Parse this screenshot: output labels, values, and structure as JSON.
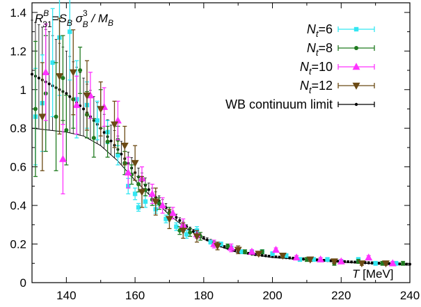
{
  "chart_data": {
    "type": "scatter",
    "title_parts": {
      "r": "R",
      "r_sup": "B",
      "r_sub": "31",
      "eq": "=S",
      "s_sub": "B",
      "sigma": "σ",
      "sigma_sup": "3",
      "sigma_sub": "B",
      "div": " / M",
      "m_sub": "B"
    },
    "xlabel_parts": {
      "t": "T",
      "unit": " [MeV]"
    },
    "xlim": [
      130,
      240
    ],
    "ylim": [
      0,
      1.45
    ],
    "xticks": [
      140,
      160,
      180,
      200,
      220,
      240
    ],
    "yticks": [
      0,
      0.2,
      0.4,
      0.6,
      0.8,
      1,
      1.2,
      1.4
    ],
    "grid": false,
    "legend_position": "top-right",
    "legend": [
      {
        "n": "N",
        "sub": "t",
        "rest": "=6",
        "color": "#33e6f2",
        "marker": "square"
      },
      {
        "n": "N",
        "sub": "t",
        "rest": "=8",
        "color": "#1f7a1f",
        "marker": "circle"
      },
      {
        "n": "N",
        "sub": "t",
        "rest": "=10",
        "color": "#ff33ff",
        "marker": "triangle-up"
      },
      {
        "n": "N",
        "sub": "t",
        "rest": "=12",
        "color": "#6b4a14",
        "marker": "triangle-down"
      },
      {
        "n": "WB continuum limit",
        "sub": "",
        "rest": "",
        "color": "#000000",
        "marker": "dot"
      }
    ],
    "series": [
      {
        "name": "Nt=6",
        "color": "#33e6f2",
        "marker": "square",
        "points": [
          [
            131,
            0.86,
            0.25
          ],
          [
            133,
            0.93,
            0.25
          ],
          [
            136,
            1.14,
            0.28
          ],
          [
            138,
            1.27,
            0.3
          ],
          [
            141,
            1.3,
            0.25
          ],
          [
            143,
            0.95,
            0.2
          ],
          [
            146,
            0.92,
            0.12
          ],
          [
            149,
            0.84,
            0.1
          ],
          [
            152,
            0.78,
            0.06
          ],
          [
            155,
            0.66,
            0.05
          ],
          [
            158,
            0.5,
            0.04
          ],
          [
            160,
            0.46,
            0.03
          ],
          [
            161,
            0.39,
            0.02
          ],
          [
            163,
            0.42,
            0.03
          ],
          [
            166,
            0.38,
            0.02
          ],
          [
            169,
            0.33,
            0.02
          ],
          [
            172,
            0.29,
            0.02
          ],
          [
            175,
            0.25,
            0.02
          ],
          [
            178,
            0.27,
            0.02
          ],
          [
            182,
            0.21,
            0.01
          ],
          [
            185,
            0.2,
            0.01
          ],
          [
            188,
            0.18,
            0.01
          ],
          [
            191,
            0.16,
            0.01
          ],
          [
            194,
            0.16,
            0.01
          ],
          [
            197,
            0.16,
            0.01
          ],
          [
            200,
            0.15,
            0.01
          ],
          [
            204,
            0.14,
            0.01
          ],
          [
            208,
            0.12,
            0.01
          ],
          [
            212,
            0.12,
            0.01
          ],
          [
            216,
            0.12,
            0.01
          ],
          [
            220,
            0.11,
            0.01
          ],
          [
            225,
            0.12,
            0.01
          ],
          [
            230,
            0.1,
            0.01
          ],
          [
            236,
            0.1,
            0.01
          ]
        ]
      },
      {
        "name": "Nt=8",
        "color": "#1f7a1f",
        "marker": "circle",
        "points": [
          [
            131,
            0.9,
            0.35
          ],
          [
            134,
            0.98,
            0.3
          ],
          [
            137,
            0.86,
            0.28
          ],
          [
            139,
            1.06,
            0.22
          ],
          [
            140,
            0.79,
            0.18
          ],
          [
            142,
            0.95,
            0.15
          ],
          [
            144,
            1.1,
            0.12
          ],
          [
            146,
            0.87,
            0.12
          ],
          [
            148,
            0.75,
            0.1
          ],
          [
            150,
            0.9,
            0.1
          ],
          [
            152,
            0.73,
            0.08
          ],
          [
            155,
            0.74,
            0.07
          ],
          [
            157,
            0.62,
            0.06
          ],
          [
            159,
            0.56,
            0.05
          ],
          [
            161,
            0.51,
            0.04
          ],
          [
            163,
            0.48,
            0.03
          ],
          [
            165,
            0.43,
            0.03
          ],
          [
            167,
            0.41,
            0.03
          ],
          [
            170,
            0.36,
            0.03
          ],
          [
            173,
            0.27,
            0.02
          ],
          [
            176,
            0.26,
            0.02
          ],
          [
            179,
            0.24,
            0.02
          ],
          [
            183,
            0.2,
            0.01
          ],
          [
            187,
            0.19,
            0.01
          ],
          [
            192,
            0.16,
            0.01
          ],
          [
            197,
            0.16,
            0.01
          ],
          [
            203,
            0.14,
            0.01
          ],
          [
            210,
            0.12,
            0.01
          ],
          [
            218,
            0.1,
            0.01
          ],
          [
            225,
            0.11,
            0.01
          ],
          [
            232,
            0.1,
            0.01
          ],
          [
            238,
            0.1,
            0.01
          ]
        ]
      },
      {
        "name": "Nt=10",
        "color": "#ff33ff",
        "marker": "triangle-up",
        "points": [
          [
            134,
            1.09,
            0.25
          ],
          [
            139,
            0.64,
            0.18
          ],
          [
            143,
            0.92,
            0.15
          ],
          [
            147,
            0.97,
            0.12
          ],
          [
            151,
            0.91,
            0.1
          ],
          [
            155,
            0.84,
            0.1
          ],
          [
            158,
            0.57,
            0.08
          ],
          [
            162,
            0.54,
            0.06
          ],
          [
            165,
            0.46,
            0.05
          ],
          [
            168,
            0.4,
            0.04
          ],
          [
            171,
            0.36,
            0.03
          ],
          [
            174,
            0.3,
            0.03
          ],
          [
            178,
            0.25,
            0.02
          ],
          [
            183,
            0.2,
            0.02
          ],
          [
            188,
            0.18,
            0.02
          ],
          [
            194,
            0.16,
            0.01
          ],
          [
            201,
            0.17,
            0.01
          ],
          [
            207,
            0.13,
            0.01
          ],
          [
            214,
            0.12,
            0.01
          ],
          [
            220,
            0.11,
            0.01
          ],
          [
            228,
            0.13,
            0.01
          ],
          [
            235,
            0.1,
            0.01
          ]
        ]
      },
      {
        "name": "Nt=12",
        "color": "#6b4a14",
        "marker": "triangle-down",
        "points": [
          [
            133,
            0.86,
            0.28
          ],
          [
            138,
            1.07,
            0.3
          ],
          [
            142,
            1.09,
            0.22
          ],
          [
            146,
            0.97,
            0.18
          ],
          [
            150,
            0.9,
            0.14
          ],
          [
            154,
            0.82,
            0.12
          ],
          [
            157,
            0.71,
            0.1
          ],
          [
            160,
            0.62,
            0.09
          ],
          [
            162,
            0.47,
            0.08
          ],
          [
            166,
            0.42,
            0.07
          ],
          [
            170,
            0.33,
            0.05
          ],
          [
            174,
            0.27,
            0.04
          ],
          [
            178,
            0.24,
            0.03
          ],
          [
            184,
            0.19,
            0.02
          ],
          [
            190,
            0.17,
            0.02
          ],
          [
            196,
            0.15,
            0.01
          ],
          [
            203,
            0.14,
            0.01
          ],
          [
            211,
            0.12,
            0.01
          ],
          [
            218,
            0.11,
            0.01
          ],
          [
            226,
            0.1,
            0.01
          ],
          [
            233,
            0.1,
            0.01
          ]
        ]
      }
    ],
    "continuum": {
      "name": "WB continuum limit",
      "x_start": 130,
      "x_end": 240,
      "x_step": 1,
      "center_at": [
        [
          130,
          1.08
        ],
        [
          135,
          1.03
        ],
        [
          140,
          0.98
        ],
        [
          145,
          0.9
        ],
        [
          150,
          0.8
        ],
        [
          155,
          0.69
        ],
        [
          160,
          0.57
        ],
        [
          165,
          0.46
        ],
        [
          170,
          0.37
        ],
        [
          175,
          0.29
        ],
        [
          180,
          0.23
        ],
        [
          185,
          0.19
        ],
        [
          190,
          0.16
        ],
        [
          195,
          0.145
        ],
        [
          200,
          0.135
        ],
        [
          210,
          0.12
        ],
        [
          220,
          0.11
        ],
        [
          230,
          0.1
        ],
        [
          240,
          0.095
        ]
      ],
      "lower_at": [
        [
          130,
          0.8
        ],
        [
          140,
          0.78
        ],
        [
          145,
          0.76
        ],
        [
          150,
          0.71
        ],
        [
          155,
          0.63
        ],
        [
          160,
          0.53
        ],
        [
          165,
          0.44
        ],
        [
          170,
          0.35
        ],
        [
          175,
          0.28
        ],
        [
          180,
          0.225
        ],
        [
          185,
          0.185
        ],
        [
          190,
          0.155
        ],
        [
          200,
          0.13
        ],
        [
          220,
          0.105
        ],
        [
          240,
          0.09
        ]
      ],
      "upper_at": [
        [
          130,
          1.36
        ],
        [
          135,
          1.3
        ],
        [
          140,
          1.2
        ],
        [
          145,
          1.06
        ],
        [
          150,
          0.9
        ],
        [
          155,
          0.76
        ],
        [
          160,
          0.62
        ],
        [
          165,
          0.49
        ],
        [
          170,
          0.39
        ],
        [
          175,
          0.3
        ],
        [
          180,
          0.24
        ],
        [
          185,
          0.2
        ],
        [
          190,
          0.165
        ],
        [
          200,
          0.14
        ],
        [
          220,
          0.115
        ],
        [
          240,
          0.1
        ]
      ]
    }
  }
}
